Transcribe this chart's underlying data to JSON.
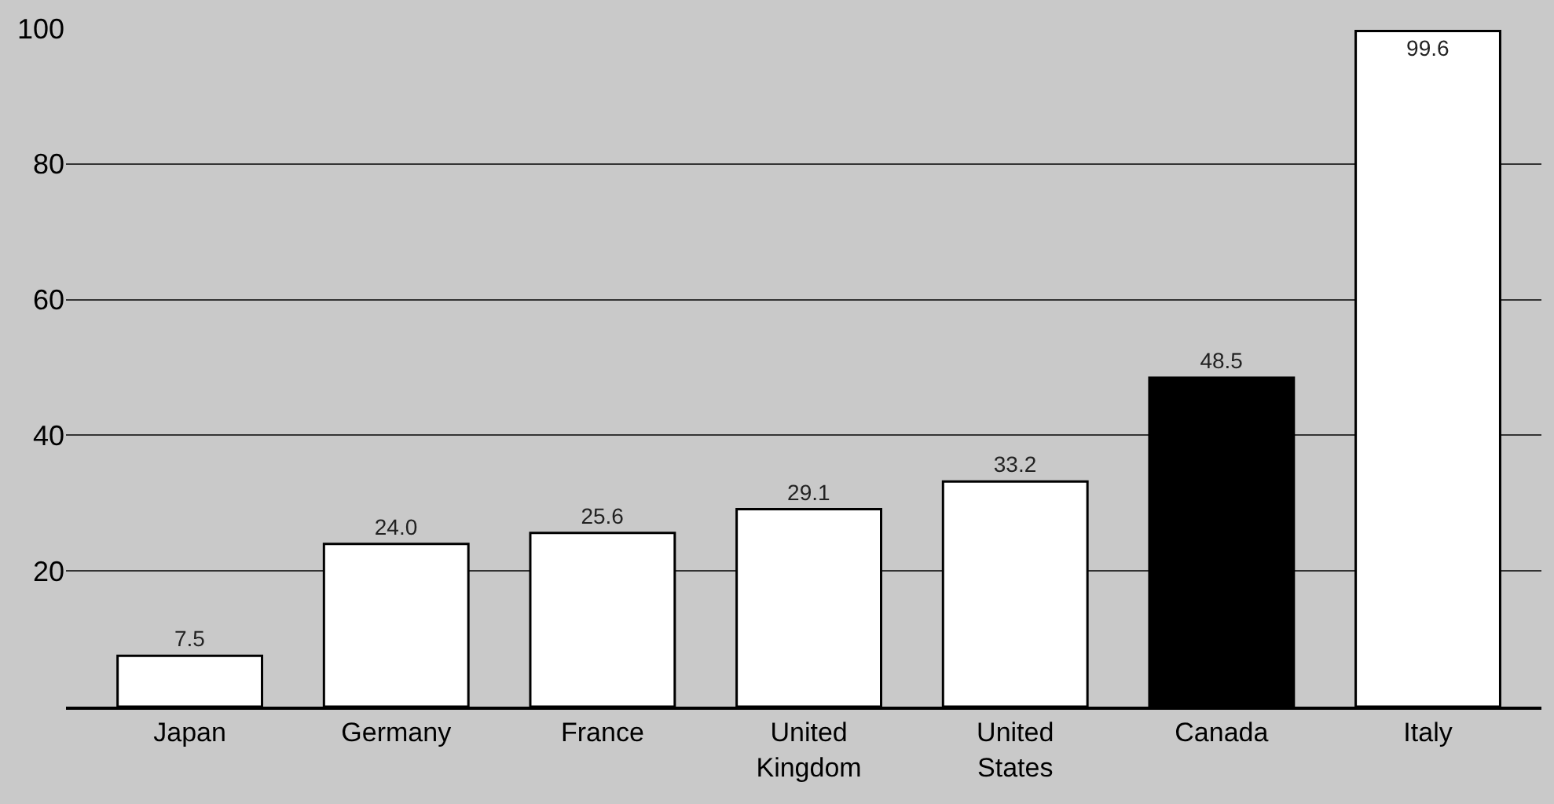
{
  "chart_data": {
    "type": "bar",
    "categories": [
      "Japan",
      "Germany",
      "France",
      "United Kingdom",
      "United States",
      "Canada",
      "Italy"
    ],
    "values": [
      7.5,
      24.0,
      25.6,
      29.1,
      33.2,
      48.5,
      99.6
    ],
    "colors": [
      "#ffffff",
      "#ffffff",
      "#ffffff",
      "#ffffff",
      "#ffffff",
      "#000000",
      "#ffffff"
    ],
    "value_labels": [
      "7.5",
      "24.0",
      "25.6",
      "29.1",
      "33.2",
      "48.5",
      "99.6"
    ],
    "ylim": [
      0,
      100
    ],
    "yticks": [
      20,
      40,
      60,
      80,
      100
    ],
    "grid": "y"
  }
}
